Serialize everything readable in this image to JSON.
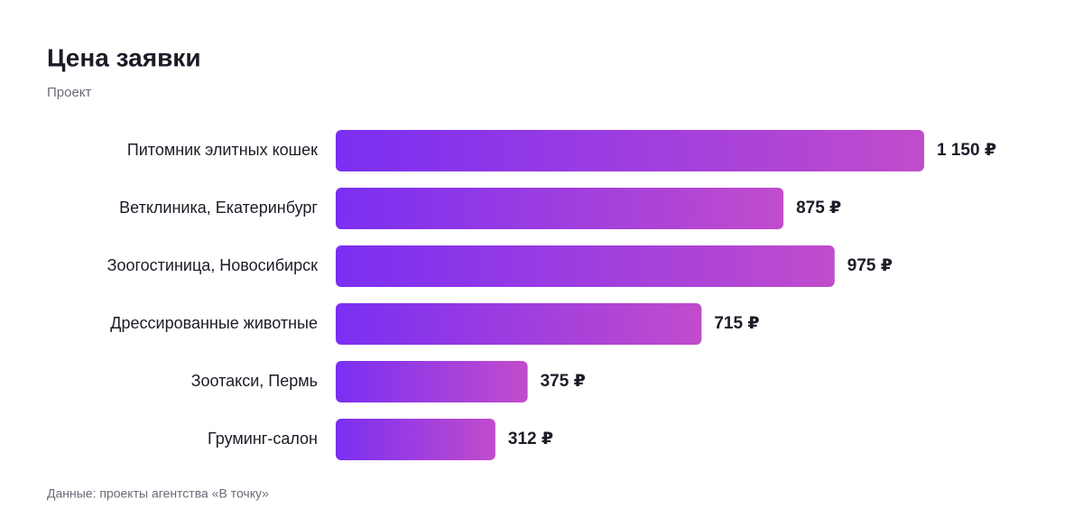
{
  "chart_data": {
    "type": "bar",
    "orientation": "horizontal",
    "title": "Цена заявки",
    "subtitle": "Проект",
    "categories": [
      "Питомник элитных кошек",
      "Ветклиника, Екатеринбург",
      "Зоогостиница, Новосибирск",
      "Дрессированные животные",
      "Зоотакси, Пермь",
      "Груминг-салон"
    ],
    "values": [
      1150,
      875,
      975,
      715,
      375,
      312
    ],
    "value_labels": [
      "1 150 ₽",
      "875 ₽",
      "975 ₽",
      "715 ₽",
      "375 ₽",
      "312 ₽"
    ],
    "gradient": [
      "#7a2ff2",
      "#c14ccc"
    ],
    "footnote": "Данные: проекты агентства «В точку»"
  }
}
